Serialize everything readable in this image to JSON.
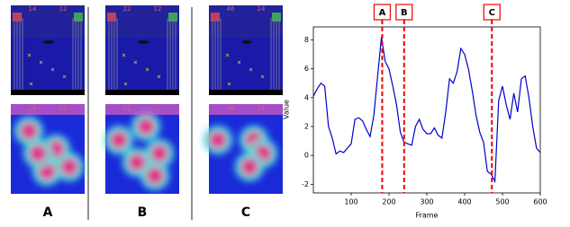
{
  "panels": [
    {
      "label": "A",
      "scores": [
        "14",
        "12"
      ]
    },
    {
      "label": "B",
      "scores": [
        "22",
        "12"
      ]
    },
    {
      "label": "C",
      "scores": [
        "46",
        "24"
      ]
    }
  ],
  "chart_data": {
    "type": "line",
    "xlabel": "Frame",
    "ylabel": "Value",
    "color": "#0000cc",
    "x": [
      0,
      10,
      20,
      30,
      40,
      50,
      60,
      70,
      80,
      90,
      100,
      110,
      120,
      130,
      140,
      150,
      160,
      170,
      180,
      190,
      200,
      210,
      220,
      230,
      240,
      250,
      260,
      270,
      280,
      290,
      300,
      310,
      320,
      330,
      340,
      350,
      360,
      370,
      380,
      390,
      400,
      410,
      420,
      430,
      440,
      450,
      460,
      470,
      480,
      490,
      500,
      510,
      520,
      530,
      540,
      550,
      560,
      570,
      580,
      590,
      600
    ],
    "values": [
      4.1,
      4.6,
      5.0,
      4.8,
      2.0,
      1.2,
      0.1,
      0.3,
      0.2,
      0.5,
      0.8,
      2.5,
      2.6,
      2.4,
      1.8,
      1.3,
      2.8,
      5.5,
      8.2,
      6.5,
      6.0,
      4.8,
      3.5,
      1.6,
      0.9,
      0.8,
      0.7,
      2.0,
      2.5,
      1.8,
      1.5,
      1.5,
      1.9,
      1.4,
      1.2,
      3.0,
      5.3,
      5.0,
      5.8,
      7.4,
      7.0,
      6.0,
      4.5,
      2.8,
      1.6,
      0.9,
      -1.1,
      -1.3,
      -1.8,
      3.8,
      4.8,
      3.5,
      2.5,
      4.3,
      3.0,
      5.3,
      5.5,
      4.0,
      2.0,
      0.5,
      0.2
    ],
    "xlim": [
      0,
      600
    ],
    "xticks": [
      100,
      200,
      300,
      400,
      500,
      600
    ],
    "ylim": [
      -2.6,
      8.9
    ],
    "yticks": [
      -2,
      0,
      2,
      4,
      6,
      8
    ],
    "markers": [
      {
        "label": "A",
        "x": 182
      },
      {
        "label": "B",
        "x": 240
      },
      {
        "label": "C",
        "x": 472
      }
    ],
    "marker_color": "#ee0000"
  }
}
